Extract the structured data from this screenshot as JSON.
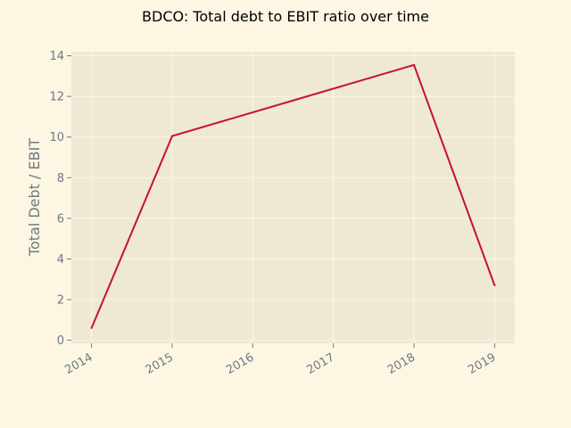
{
  "chart_data": {
    "type": "line",
    "title": "BDCO: Total debt to EBIT ratio over time",
    "xlabel": "",
    "ylabel": "Total Debt / EBIT",
    "x": [
      "2014",
      "2015",
      "2016",
      "2017",
      "2018",
      "2019"
    ],
    "series": [
      {
        "values": [
          0.6,
          10.05,
          null,
          null,
          13.55,
          2.7
        ]
      }
    ],
    "xlim": [
      2013.75,
      2019.25
    ],
    "ylim": [
      -0.15,
      14.2
    ],
    "yticks": [
      0,
      2,
      4,
      6,
      8,
      10,
      12,
      14
    ],
    "grid": true,
    "colors": {
      "figure_bg": "#fdf6e3",
      "plot_bg": "#eee8d5",
      "grid": "#fdf6e3",
      "line": "#c8102e",
      "text": "#6c7a80"
    }
  }
}
